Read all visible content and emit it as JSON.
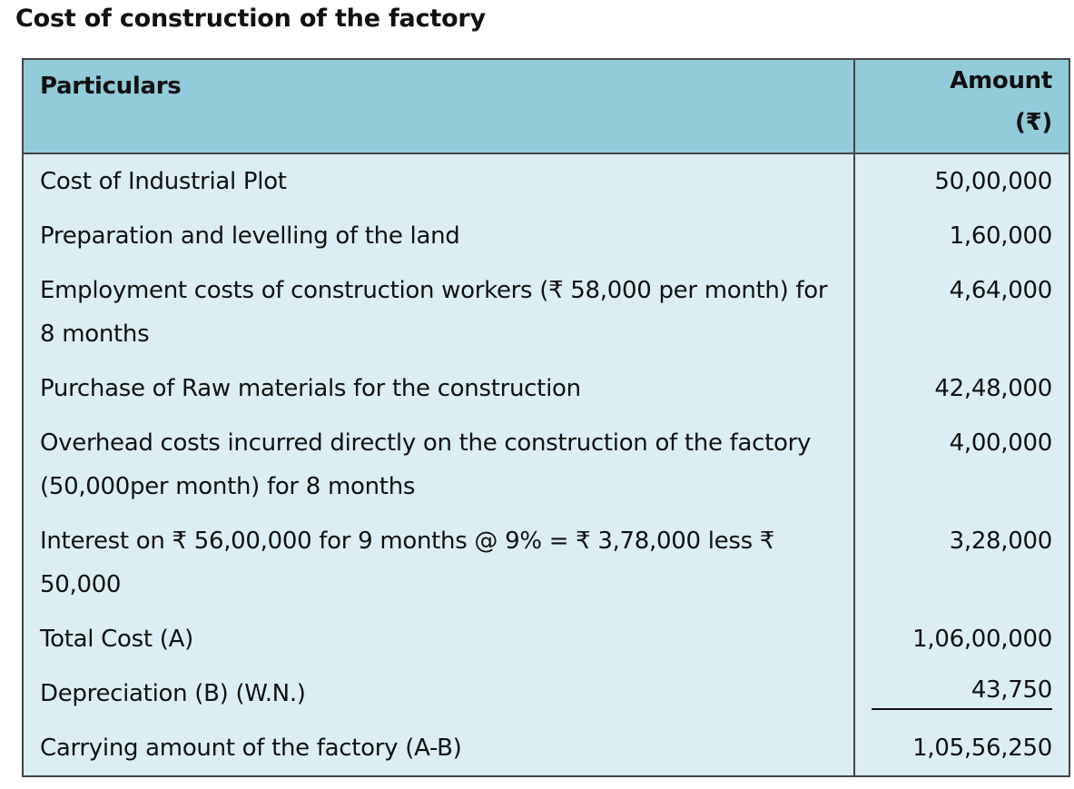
{
  "title": "Cost of construction of the factory",
  "table": {
    "headers": {
      "particulars": "Particulars",
      "amount": "Amount",
      "amount_unit": "(₹)"
    },
    "rows": [
      {
        "particulars": "Cost of Industrial Plot",
        "amount": "50,00,000"
      },
      {
        "particulars": "Preparation and levelling of the land",
        "amount": "1,60,000"
      },
      {
        "particulars": "Employment costs of construction workers (₹ 58,000 per month) for 8 months",
        "amount": "4,64,000"
      },
      {
        "particulars": "Purchase of Raw materials for the construction",
        "amount": "42,48,000"
      },
      {
        "particulars": "Overhead costs incurred directly on the construction of the factory (50,000per month) for 8 months",
        "amount": "4,00,000"
      },
      {
        "particulars": "Interest on ₹ 56,00,000 for 9 months @ 9% = ₹ 3,78,000 less ₹ 50,000",
        "amount": "3,28,000"
      },
      {
        "particulars": "Total Cost (A)",
        "amount": "1,06,00,000"
      },
      {
        "particulars": "Depreciation (B) (W.N.)",
        "amount": "43,750",
        "underlined": true
      },
      {
        "particulars": "Carrying amount of the factory (A-B)",
        "amount": "1,05,56,250"
      }
    ]
  }
}
